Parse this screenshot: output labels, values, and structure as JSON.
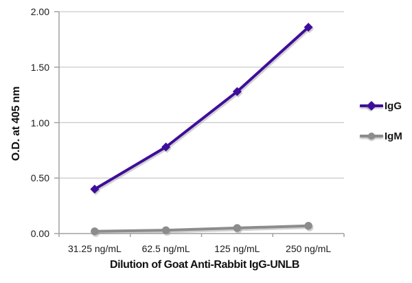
{
  "chart_data": {
    "type": "line",
    "title": "",
    "xlabel": "Dilution of Goat Anti-Rabbit IgG-UNLB",
    "ylabel": "O.D. at 405 nm",
    "categories": [
      "31.25 ng/mL",
      "62.5 ng/mL",
      "125 ng/mL",
      "250 ng/mL"
    ],
    "series": [
      {
        "name": "IgG",
        "values": [
          0.4,
          0.78,
          1.28,
          1.86
        ],
        "color": "#3e0d9c",
        "marker": "diamond"
      },
      {
        "name": "IgM",
        "values": [
          0.02,
          0.03,
          0.05,
          0.07
        ],
        "color": "#8c8c8c",
        "marker": "circle"
      }
    ],
    "ylim": [
      0,
      2.0
    ],
    "y_tick_step": 0.5,
    "y_ticks": [
      "0.00",
      "0.50",
      "1.00",
      "1.50",
      "2.00"
    ],
    "grid": true,
    "legend_position": "right",
    "colors": {
      "gridline": "#c9c9c9",
      "axis": "#a0a0a0",
      "tick_text": "#1a1a1a",
      "title_text": "#111111",
      "background": "#ffffff",
      "shadow": "#9a9a9a"
    }
  }
}
